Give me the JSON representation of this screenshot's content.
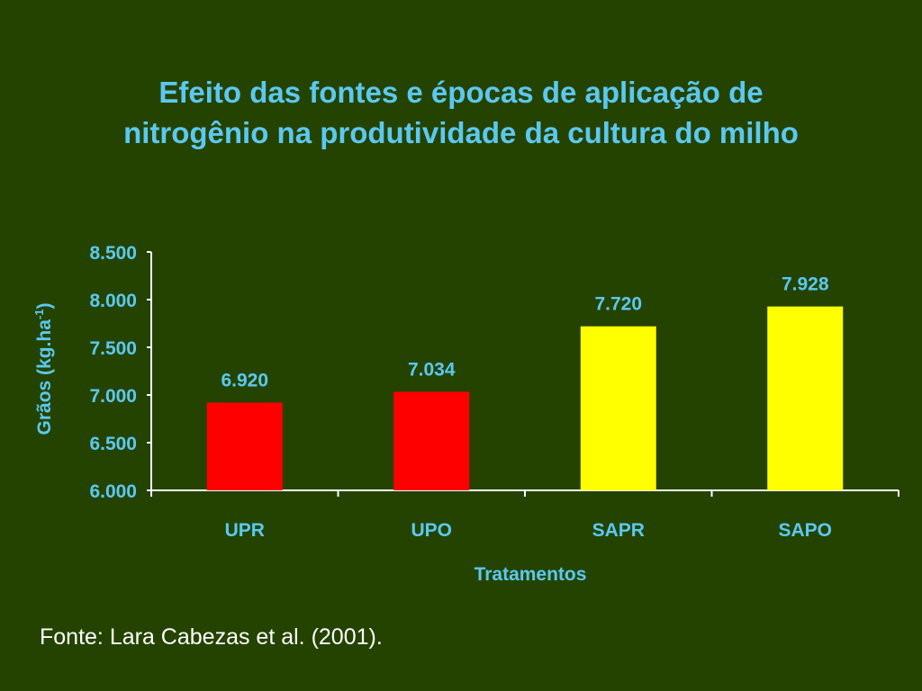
{
  "slide": {
    "title": "Efeito das fontes e épocas de aplicação de nitrogênio na produtividade da cultura do milho",
    "source": "Fonte: Lara Cabezas et al. (2001)."
  },
  "colors": {
    "background": "#244300",
    "accent_text": "#5cc8f0",
    "axis": "#ffffff",
    "bar_red": "#ff0000",
    "bar_yellow": "#ffff00"
  },
  "chart_data": {
    "type": "bar",
    "title": "Efeito das fontes e épocas de aplicação de nitrogênio na produtividade da cultura do milho",
    "xlabel": "Tratamentos",
    "ylabel_main": "Grãos (kg.ha",
    "ylabel_sup": "-1",
    "ylabel_close": ")",
    "categories": [
      "UPR",
      "UPO",
      "SAPR",
      "SAPO"
    ],
    "values": [
      6920,
      7034,
      7720,
      7928
    ],
    "value_labels": [
      "6.920",
      "7.034",
      "7.720",
      "7.928"
    ],
    "bar_colors": [
      "#ff0000",
      "#ff0000",
      "#ffff00",
      "#ffff00"
    ],
    "yticks": [
      6000,
      6500,
      7000,
      7500,
      8000,
      8500
    ],
    "ytick_labels": [
      "6.000",
      "6.500",
      "7.000",
      "7.500",
      "8.000",
      "8.500"
    ],
    "ylim": [
      6000,
      8500
    ],
    "grid": false,
    "legend": "none"
  }
}
